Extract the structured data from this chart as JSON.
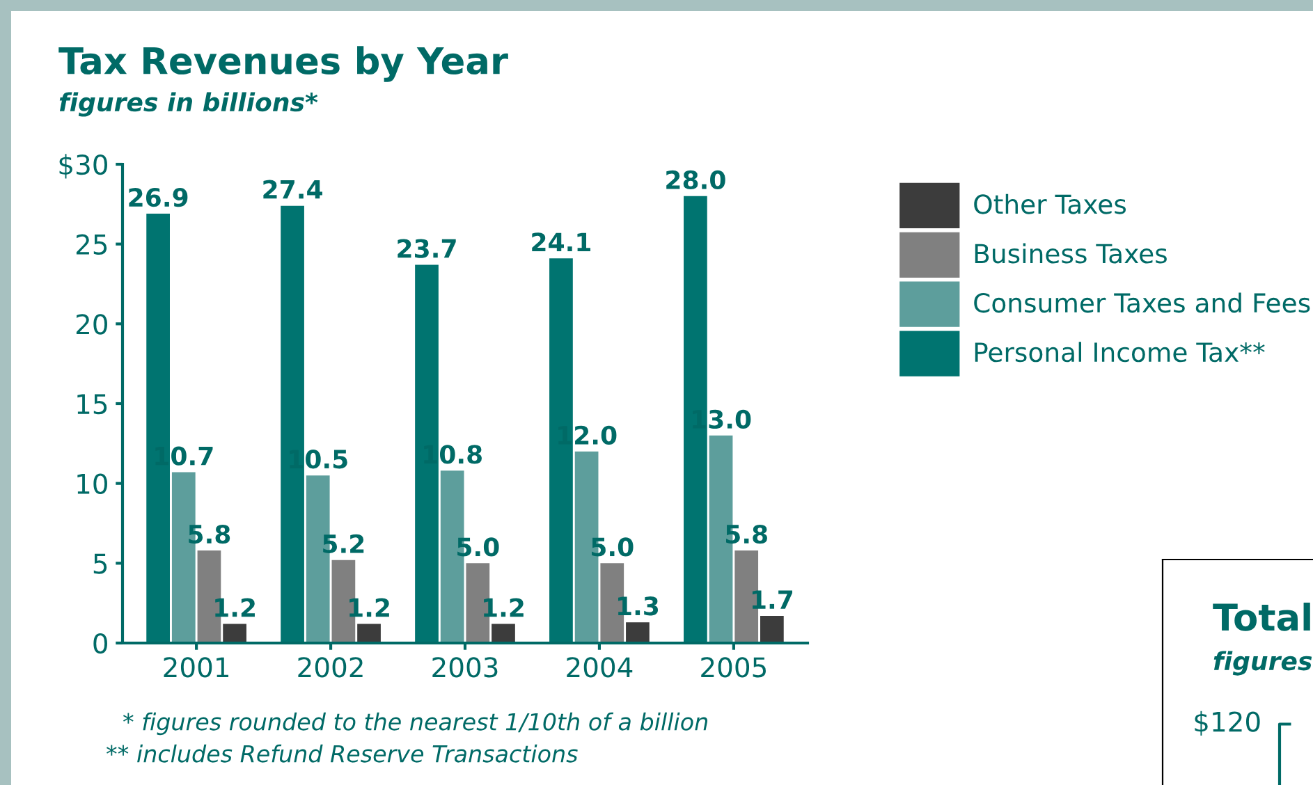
{
  "chart_data": [
    {
      "type": "bar",
      "title": "Tax Revenues by Year",
      "subtitle": "figures in billions*",
      "categories": [
        "2001",
        "2002",
        "2003",
        "2004",
        "2005"
      ],
      "series": [
        {
          "name": "Personal Income Tax**",
          "color": "#007470",
          "values": [
            26.9,
            27.4,
            23.7,
            24.1,
            28.0
          ],
          "value_labels": [
            "26.9",
            "27.4",
            "23.7",
            "24.1",
            "28.0"
          ]
        },
        {
          "name": "Consumer Taxes and Fees",
          "color": "#5d9e9c",
          "values": [
            10.7,
            10.5,
            10.8,
            12.0,
            13.0
          ],
          "value_labels": [
            "10.7",
            "10.5",
            "10.8",
            "12.0",
            "13.0"
          ]
        },
        {
          "name": "Business Taxes",
          "color": "#808080",
          "values": [
            5.8,
            5.2,
            5.0,
            5.0,
            5.8
          ],
          "value_labels": [
            "5.8",
            "5.2",
            "5.0",
            "5.0",
            "5.8"
          ]
        },
        {
          "name": "Other Taxes",
          "color": "#3c3c3c",
          "values": [
            1.2,
            1.2,
            1.2,
            1.3,
            1.7
          ],
          "value_labels": [
            "1.2",
            "1.2",
            "1.2",
            "1.3",
            "1.7"
          ]
        }
      ],
      "ylim": [
        0,
        30
      ],
      "yticks": [
        0,
        5,
        10,
        15,
        20,
        25,
        {
          "value": 30,
          "label": "$30"
        }
      ],
      "grid": false,
      "legend": "right",
      "annotations": [
        "* figures rounded to the nearest 1/10th of a billion",
        "** includes Refund Reserve Transactions"
      ]
    },
    {
      "type": "other",
      "title": "Total",
      "subtitle": "figures",
      "annotations": [
        "$120"
      ]
    }
  ]
}
